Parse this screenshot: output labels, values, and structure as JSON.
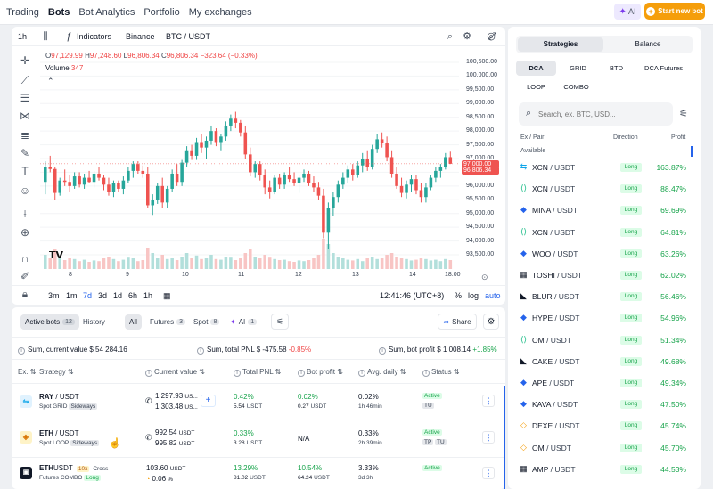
{
  "nav": {
    "links": [
      "Trading",
      "Bots",
      "Bot Analytics",
      "Portfolio",
      "My exchanges"
    ],
    "active": "Bots",
    "ai_label": "AI",
    "start_label": "Start new bot"
  },
  "chart_toolbar": {
    "interval": "1h",
    "indicators": "Indicators",
    "exchange": "Binance",
    "pair": "BTC / USDT"
  },
  "ohlc": {
    "o_label": "O",
    "o": "97,129.99",
    "h_label": "H",
    "h": "97,248.60",
    "l_label": "L",
    "l": "96,806.34",
    "c_label": "C",
    "c": "96,806.34",
    "change": "−323.64 (−0.33%)",
    "volume_label": "Volume",
    "volume": "347"
  },
  "chart_data": {
    "type": "candlestick",
    "yticks": [
      "100,500.00",
      "100,000.00",
      "99,500.00",
      "99,000.00",
      "98,500.00",
      "98,000.00",
      "97,500.00",
      "97,000.00",
      "96,500.00",
      "96,000.00",
      "95,500.00",
      "95,000.00",
      "94,500.00",
      "94,000.00",
      "93,500.00"
    ],
    "ylim": [
      93500,
      100500
    ],
    "xticks": [
      "8",
      "9",
      "10",
      "11",
      "12",
      "13",
      "14",
      "18:00"
    ],
    "current_price": "96,806.34",
    "current_price_up": "97,000.00",
    "colors": {
      "up": "#26a69a",
      "down": "#ef5350"
    },
    "candles": [
      {
        "o": 96150,
        "h": 96900,
        "l": 95700,
        "c": 96700
      },
      {
        "o": 96700,
        "h": 97100,
        "l": 96500,
        "c": 96620
      },
      {
        "o": 96620,
        "h": 96700,
        "l": 95500,
        "c": 95750
      },
      {
        "o": 95750,
        "h": 96300,
        "l": 95650,
        "c": 96200
      },
      {
        "o": 96200,
        "h": 96600,
        "l": 96000,
        "c": 96150
      },
      {
        "o": 96150,
        "h": 96400,
        "l": 95800,
        "c": 96000
      },
      {
        "o": 96000,
        "h": 96500,
        "l": 95900,
        "c": 96350
      },
      {
        "o": 96350,
        "h": 96500,
        "l": 95950,
        "c": 96050
      },
      {
        "o": 96050,
        "h": 96450,
        "l": 95900,
        "c": 96300
      },
      {
        "o": 96300,
        "h": 96550,
        "l": 96100,
        "c": 96150
      },
      {
        "o": 96150,
        "h": 96550,
        "l": 95950,
        "c": 96450
      },
      {
        "o": 96450,
        "h": 96700,
        "l": 96200,
        "c": 96300
      },
      {
        "o": 96300,
        "h": 96400,
        "l": 95850,
        "c": 96050
      },
      {
        "o": 96050,
        "h": 96300,
        "l": 95650,
        "c": 95800
      },
      {
        "o": 95800,
        "h": 96200,
        "l": 95600,
        "c": 96100
      },
      {
        "o": 96100,
        "h": 96200,
        "l": 95800,
        "c": 95900
      },
      {
        "o": 95900,
        "h": 96350,
        "l": 95700,
        "c": 96200
      },
      {
        "o": 96200,
        "h": 96700,
        "l": 96100,
        "c": 96550
      },
      {
        "o": 96550,
        "h": 96900,
        "l": 96300,
        "c": 96800
      },
      {
        "o": 96800,
        "h": 96900,
        "l": 96450,
        "c": 96550
      },
      {
        "o": 96550,
        "h": 96750,
        "l": 96300,
        "c": 96450
      },
      {
        "o": 96450,
        "h": 96700,
        "l": 95200,
        "c": 95300
      },
      {
        "o": 95300,
        "h": 95700,
        "l": 94950,
        "c": 95500
      },
      {
        "o": 95500,
        "h": 96100,
        "l": 95350,
        "c": 96000
      },
      {
        "o": 96000,
        "h": 96300,
        "l": 95200,
        "c": 95400
      },
      {
        "o": 95400,
        "h": 96000,
        "l": 95200,
        "c": 95900
      },
      {
        "o": 95900,
        "h": 96600,
        "l": 95800,
        "c": 96450
      },
      {
        "o": 96450,
        "h": 96800,
        "l": 96000,
        "c": 96150
      },
      {
        "o": 96150,
        "h": 96950,
        "l": 96000,
        "c": 96850
      },
      {
        "o": 96850,
        "h": 97450,
        "l": 96700,
        "c": 97300
      },
      {
        "o": 97300,
        "h": 97500,
        "l": 96950,
        "c": 97100
      },
      {
        "o": 97100,
        "h": 97750,
        "l": 96950,
        "c": 97600
      },
      {
        "o": 97600,
        "h": 97900,
        "l": 97200,
        "c": 97400
      },
      {
        "o": 97400,
        "h": 97800,
        "l": 97000,
        "c": 97650
      },
      {
        "o": 97650,
        "h": 98200,
        "l": 97500,
        "c": 98000
      },
      {
        "o": 98000,
        "h": 98100,
        "l": 97450,
        "c": 97600
      },
      {
        "o": 97600,
        "h": 97900,
        "l": 97300,
        "c": 97800
      },
      {
        "o": 97800,
        "h": 98350,
        "l": 97650,
        "c": 98200
      },
      {
        "o": 98200,
        "h": 98600,
        "l": 98000,
        "c": 98450
      },
      {
        "o": 98450,
        "h": 98700,
        "l": 98100,
        "c": 98300
      },
      {
        "o": 98300,
        "h": 98400,
        "l": 97800,
        "c": 97950
      },
      {
        "o": 97950,
        "h": 98200,
        "l": 97000,
        "c": 97150
      },
      {
        "o": 97150,
        "h": 97400,
        "l": 96350,
        "c": 96500
      },
      {
        "o": 96500,
        "h": 96900,
        "l": 96300,
        "c": 96800
      },
      {
        "o": 96800,
        "h": 96900,
        "l": 96200,
        "c": 96400
      },
      {
        "o": 96400,
        "h": 96600,
        "l": 95700,
        "c": 95950
      },
      {
        "o": 95950,
        "h": 96200,
        "l": 95550,
        "c": 95800
      },
      {
        "o": 95800,
        "h": 96400,
        "l": 95700,
        "c": 96300
      },
      {
        "o": 96300,
        "h": 96450,
        "l": 95900,
        "c": 96050
      },
      {
        "o": 96050,
        "h": 96500,
        "l": 95900,
        "c": 96400
      },
      {
        "o": 96400,
        "h": 96700,
        "l": 96150,
        "c": 96250
      },
      {
        "o": 96250,
        "h": 96500,
        "l": 96000,
        "c": 96100
      },
      {
        "o": 96100,
        "h": 96400,
        "l": 95750,
        "c": 96300
      },
      {
        "o": 96300,
        "h": 96600,
        "l": 96150,
        "c": 96450
      },
      {
        "o": 96450,
        "h": 96550,
        "l": 96000,
        "c": 96100
      },
      {
        "o": 96100,
        "h": 96350,
        "l": 95800,
        "c": 95950
      },
      {
        "o": 95950,
        "h": 96150,
        "l": 95500,
        "c": 95650
      },
      {
        "o": 95650,
        "h": 95900,
        "l": 94100,
        "c": 94300
      },
      {
        "o": 94300,
        "h": 95400,
        "l": 93700,
        "c": 95200
      },
      {
        "o": 95200,
        "h": 95800,
        "l": 94900,
        "c": 95600
      },
      {
        "o": 95600,
        "h": 96200,
        "l": 95400,
        "c": 96050
      },
      {
        "o": 96050,
        "h": 96500,
        "l": 95900,
        "c": 96300
      },
      {
        "o": 96300,
        "h": 96750,
        "l": 96100,
        "c": 96600
      },
      {
        "o": 96600,
        "h": 96800,
        "l": 96200,
        "c": 96400
      },
      {
        "o": 96400,
        "h": 96900,
        "l": 96300,
        "c": 96750
      },
      {
        "o": 96750,
        "h": 97200,
        "l": 96500,
        "c": 97000
      },
      {
        "o": 97000,
        "h": 97300,
        "l": 96550,
        "c": 96700
      },
      {
        "o": 96700,
        "h": 97500,
        "l": 96600,
        "c": 97350
      },
      {
        "o": 97350,
        "h": 97900,
        "l": 97200,
        "c": 97700
      },
      {
        "o": 97700,
        "h": 97950,
        "l": 97400,
        "c": 97550
      },
      {
        "o": 97550,
        "h": 97800,
        "l": 96900,
        "c": 97050
      },
      {
        "o": 97050,
        "h": 97300,
        "l": 96300,
        "c": 96450
      },
      {
        "o": 96450,
        "h": 96700,
        "l": 95900,
        "c": 96000
      },
      {
        "o": 96000,
        "h": 96300,
        "l": 95600,
        "c": 95750
      },
      {
        "o": 95750,
        "h": 96200,
        "l": 95550,
        "c": 96050
      },
      {
        "o": 96050,
        "h": 96400,
        "l": 95800,
        "c": 96250
      },
      {
        "o": 96250,
        "h": 96400,
        "l": 95700,
        "c": 95850
      },
      {
        "o": 95850,
        "h": 96100,
        "l": 95400,
        "c": 95600
      },
      {
        "o": 95600,
        "h": 96100,
        "l": 95400,
        "c": 95950
      },
      {
        "o": 95950,
        "h": 96400,
        "l": 95850,
        "c": 96300
      },
      {
        "o": 96300,
        "h": 96700,
        "l": 96150,
        "c": 96550
      },
      {
        "o": 96550,
        "h": 96800,
        "l": 96300,
        "c": 96700
      },
      {
        "o": 96700,
        "h": 97200,
        "l": 96600,
        "c": 97050
      },
      {
        "o": 97050,
        "h": 97250,
        "l": 96800,
        "c": 96810
      }
    ],
    "volumes": [
      40,
      30,
      55,
      35,
      25,
      30,
      28,
      22,
      26,
      20,
      24,
      22,
      30,
      35,
      28,
      22,
      26,
      32,
      30,
      22,
      25,
      60,
      45,
      30,
      40,
      28,
      30,
      25,
      35,
      45,
      30,
      38,
      28,
      30,
      40,
      28,
      26,
      35,
      32,
      25,
      30,
      45,
      55,
      35,
      30,
      40,
      32,
      28,
      25,
      26,
      22,
      20,
      24,
      22,
      25,
      30,
      40,
      85,
      70,
      45,
      35,
      30,
      26,
      24,
      28,
      22,
      30,
      35,
      28,
      30,
      40,
      45,
      35,
      30,
      28,
      24,
      26,
      30,
      28,
      24,
      26,
      22,
      28,
      25
    ]
  },
  "chart_bottom": {
    "ranges": [
      "3m",
      "1m",
      "7d",
      "3d",
      "1d",
      "6h",
      "1h"
    ],
    "active_range": "7d",
    "time": "12:41:46 (UTC+8)",
    "pct": "%",
    "log": "log",
    "auto": "auto"
  },
  "bots": {
    "tabs": [
      {
        "label": "Active bots",
        "count": "12"
      },
      {
        "label": "History",
        "count": ""
      }
    ],
    "filters": [
      {
        "label": "All",
        "count": ""
      },
      {
        "label": "Futures",
        "count": "3"
      },
      {
        "label": "Spot",
        "count": "8"
      },
      {
        "label": "AI",
        "count": "1"
      }
    ],
    "share": "Share",
    "summary": {
      "value_label": "Sum, current value",
      "value": "$ 54 284.16",
      "pnl_label": "Sum, total PNL",
      "pnl": "$ -475.58",
      "pnl_pct": "-0.85%",
      "profit_label": "Sum, bot profit",
      "profit": "$ 1 008.14",
      "profit_pct": "+1.85%"
    },
    "headers": [
      "Ex.",
      "Strategy",
      "Current value",
      "Total PNL",
      "Bot profit",
      "Avg. daily",
      "Status"
    ],
    "rows": [
      {
        "pair": "RAY",
        "quote": "/ USDT",
        "market": "",
        "lev": "",
        "type": "Spot GRID",
        "tag": "Sideways",
        "value1": "1 297.93",
        "unit1": "US...",
        "value2": "1 303.48",
        "unit2": "US...",
        "pnl_pct": "0.42%",
        "pnl": "5.54",
        "pnl_unit": "USDT",
        "profit_pct": "0.02%",
        "profit": "0.27",
        "profit_unit": "USDT",
        "daily_pct": "0.02%",
        "age": "1h 46min",
        "status": "Active",
        "flags": [
          "TU"
        ]
      },
      {
        "pair": "ETH",
        "quote": "/ USDT",
        "market": "",
        "lev": "",
        "type": "Spot LOOP",
        "tag": "Sideways",
        "value1": "992.54",
        "unit1": "USDT",
        "value2": "995.82",
        "unit2": "USDT",
        "pnl_pct": "0.33%",
        "pnl": "3.28",
        "pnl_unit": "USDT",
        "profit_pct": "N/A",
        "profit": "",
        "profit_unit": "",
        "daily_pct": "0.33%",
        "age": "2h 39min",
        "status": "Active",
        "flags": [
          "TP",
          "TU"
        ]
      },
      {
        "pair": "ETH",
        "quote": "USDT",
        "market": "Cross",
        "lev": "10x",
        "type": "Futures COMBO",
        "tag": "Long",
        "value1": "103.60",
        "unit1": "USDT",
        "value2": "0.06",
        "unit2": "%",
        "pnl_pct": "13.29%",
        "pnl": "81.02",
        "pnl_unit": "USDT",
        "profit_pct": "10.54%",
        "profit": "64.24",
        "profit_unit": "USDT",
        "daily_pct": "3.33%",
        "age": "3d 3h",
        "status": "Active",
        "flags": []
      }
    ]
  },
  "right": {
    "seg": [
      "Strategies",
      "Balance"
    ],
    "types": [
      "DCA",
      "GRID",
      "BTD",
      "DCA Futures",
      "LOOP",
      "COMBO"
    ],
    "active_type": "DCA",
    "search_placeholder": "Search, ex. BTC, USD...",
    "col_pair": "Ex / Pair",
    "col_direction": "Direction",
    "col_profit": "Profit",
    "available": "Available",
    "pairs": [
      {
        "ex": "bybit",
        "base": "XCN",
        "quote": "/ USDT",
        "dir": "Long",
        "profit": "163.87%"
      },
      {
        "ex": "kucoin",
        "base": "XCN",
        "quote": "/ USDT",
        "dir": "Long",
        "profit": "88.47%"
      },
      {
        "ex": "coinbase",
        "base": "MINA",
        "quote": "/ USDT",
        "dir": "Long",
        "profit": "69.69%"
      },
      {
        "ex": "kucoin",
        "base": "XCN",
        "quote": "/ USDT",
        "dir": "Long",
        "profit": "64.81%"
      },
      {
        "ex": "coinbase",
        "base": "WOO",
        "quote": "/ USDT",
        "dir": "Long",
        "profit": "63.26%"
      },
      {
        "ex": "okx",
        "base": "TOSHI",
        "quote": "/ USDT",
        "dir": "Long",
        "profit": "62.02%"
      },
      {
        "ex": "bitget",
        "base": "BLUR",
        "quote": "/ USDT",
        "dir": "Long",
        "profit": "56.46%"
      },
      {
        "ex": "coinbase",
        "base": "HYPE",
        "quote": "/ USDT",
        "dir": "Long",
        "profit": "54.96%"
      },
      {
        "ex": "kucoin",
        "base": "OM",
        "quote": "/ USDT",
        "dir": "Long",
        "profit": "51.34%"
      },
      {
        "ex": "bitget",
        "base": "CAKE",
        "quote": "/ USDT",
        "dir": "Long",
        "profit": "49.68%"
      },
      {
        "ex": "coinbase",
        "base": "APE",
        "quote": "/ USDT",
        "dir": "Long",
        "profit": "49.34%"
      },
      {
        "ex": "coinbase",
        "base": "KAVA",
        "quote": "/ USDT",
        "dir": "Long",
        "profit": "47.50%"
      },
      {
        "ex": "binance",
        "base": "DEXE",
        "quote": "/ USDT",
        "dir": "Long",
        "profit": "45.74%"
      },
      {
        "ex": "binance",
        "base": "OM",
        "quote": "/ USDT",
        "dir": "Long",
        "profit": "45.70%"
      },
      {
        "ex": "okx",
        "base": "AMP",
        "quote": "/ USDT",
        "dir": "Long",
        "profit": "44.53%"
      }
    ]
  }
}
